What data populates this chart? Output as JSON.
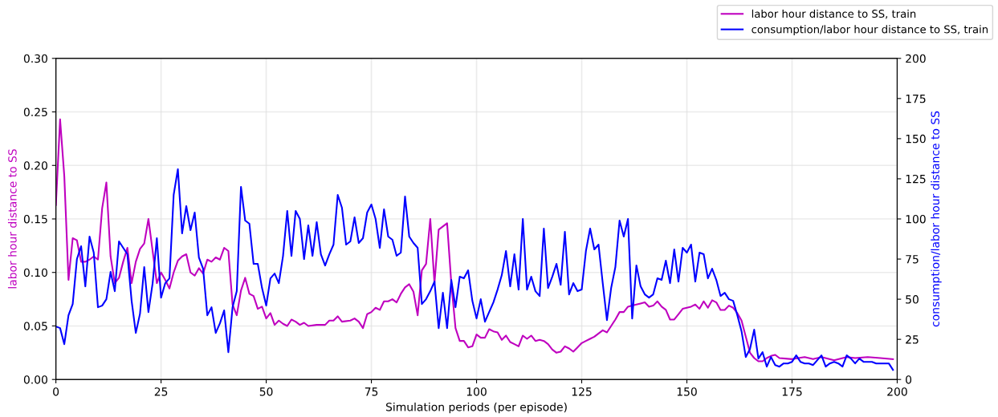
{
  "chart_data": {
    "type": "line",
    "xlabel": "Simulation periods (per episode)",
    "ylabel": "labor hour distance to SS",
    "y2label": "consumption/labor hour distance to SS",
    "xlim": [
      0,
      200
    ],
    "xticks": [
      0,
      25,
      50,
      75,
      100,
      125,
      150,
      175,
      200
    ],
    "ylim": [
      0,
      0.3
    ],
    "yticks": [
      {
        "value": 0,
        "label": "0.00"
      },
      {
        "value": 0.05,
        "label": "0.05"
      },
      {
        "value": 0.1,
        "label": "0.10"
      },
      {
        "value": 0.15,
        "label": "0.15"
      },
      {
        "value": 0.2,
        "label": "0.20"
      },
      {
        "value": 0.25,
        "label": "0.25"
      },
      {
        "value": 0.3,
        "label": "0.30"
      }
    ],
    "y2lim": [
      0,
      200
    ],
    "y2ticks": [
      0,
      25,
      50,
      75,
      100,
      125,
      150,
      175,
      200
    ],
    "grid": true,
    "legend": "top right",
    "line_style": "solid",
    "series": [
      {
        "name": "labor hour distance to SS, train",
        "color": "#bf00bf",
        "x": [
          0,
          1,
          2,
          3,
          4,
          5,
          6,
          7,
          8,
          9,
          10,
          11,
          12,
          13,
          14,
          15,
          16,
          17,
          18,
          19,
          20,
          21,
          22,
          23,
          24,
          25,
          26,
          27,
          28,
          29,
          30,
          31,
          32,
          33,
          34,
          35,
          36,
          37,
          38,
          39,
          40,
          41,
          42,
          43,
          44,
          45,
          46,
          47,
          48,
          49,
          50,
          51,
          52,
          53,
          54,
          55,
          56,
          57,
          58,
          59,
          60,
          62,
          64,
          65,
          66,
          67,
          68,
          70,
          71,
          72,
          73,
          74,
          75,
          76,
          77,
          78,
          79,
          80,
          81,
          82,
          83,
          84,
          85,
          86,
          87,
          88,
          89,
          90,
          91,
          92,
          93,
          94,
          95,
          96,
          97,
          98,
          99,
          100,
          101,
          102,
          103,
          104,
          105,
          106,
          107,
          108,
          109,
          110,
          111,
          112,
          113,
          114,
          115,
          116,
          117,
          118,
          119,
          120,
          121,
          122,
          123,
          124,
          125,
          126,
          127,
          128,
          129,
          130,
          131,
          132,
          133,
          134,
          135,
          136,
          137,
          138,
          139,
          140,
          141,
          142,
          143,
          144,
          145,
          146,
          147,
          148,
          149,
          150,
          151,
          152,
          153,
          154,
          155,
          156,
          157,
          158,
          159,
          160,
          161,
          162,
          163,
          164,
          165,
          166,
          167,
          168,
          169,
          170,
          171,
          172,
          175,
          178,
          180,
          182,
          185,
          188,
          190,
          193,
          196,
          199
        ],
        "values": [
          0.163,
          0.243,
          0.19,
          0.093,
          0.132,
          0.13,
          0.11,
          0.11,
          0.112,
          0.115,
          0.112,
          0.16,
          0.184,
          0.115,
          0.09,
          0.095,
          0.11,
          0.123,
          0.09,
          0.11,
          0.122,
          0.127,
          0.15,
          0.12,
          0.09,
          0.1,
          0.093,
          0.085,
          0.1,
          0.111,
          0.115,
          0.117,
          0.1,
          0.097,
          0.104,
          0.099,
          0.112,
          0.11,
          0.114,
          0.112,
          0.123,
          0.12,
          0.07,
          0.06,
          0.083,
          0.095,
          0.08,
          0.078,
          0.066,
          0.068,
          0.057,
          0.062,
          0.051,
          0.055,
          0.052,
          0.05,
          0.056,
          0.054,
          0.051,
          0.053,
          0.05,
          0.051,
          0.051,
          0.055,
          0.055,
          0.059,
          0.054,
          0.055,
          0.057,
          0.054,
          0.048,
          0.061,
          0.063,
          0.067,
          0.065,
          0.073,
          0.073,
          0.075,
          0.072,
          0.08,
          0.086,
          0.089,
          0.082,
          0.06,
          0.102,
          0.108,
          0.15,
          0.09,
          0.14,
          0.143,
          0.146,
          0.09,
          0.048,
          0.036,
          0.036,
          0.03,
          0.031,
          0.042,
          0.039,
          0.039,
          0.047,
          0.045,
          0.044,
          0.037,
          0.041,
          0.035,
          0.033,
          0.031,
          0.041,
          0.038,
          0.041,
          0.036,
          0.037,
          0.036,
          0.033,
          0.028,
          0.025,
          0.026,
          0.031,
          0.029,
          0.026,
          0.03,
          0.034,
          0.036,
          0.038,
          0.04,
          0.043,
          0.046,
          0.044,
          0.05,
          0.056,
          0.063,
          0.063,
          0.068,
          0.069,
          0.07,
          0.071,
          0.072,
          0.068,
          0.069,
          0.073,
          0.068,
          0.065,
          0.056,
          0.056,
          0.061,
          0.066,
          0.067,
          0.068,
          0.07,
          0.066,
          0.073,
          0.067,
          0.074,
          0.072,
          0.065,
          0.065,
          0.069,
          0.067,
          0.062,
          0.055,
          0.04,
          0.025,
          0.02,
          0.017,
          0.017,
          0.02,
          0.022,
          0.023,
          0.02,
          0.019,
          0.021,
          0.019,
          0.021,
          0.018,
          0.021,
          0.02,
          0.021,
          0.02,
          0.019
        ]
      },
      {
        "name": "consumption/labor hour distance to SS, train",
        "color": "#0000ff",
        "axis": "y2",
        "x": [
          0,
          1,
          2,
          3,
          4,
          5,
          6,
          7,
          8,
          9,
          10,
          11,
          12,
          13,
          14,
          15,
          16,
          17,
          18,
          19,
          20,
          21,
          22,
          23,
          24,
          25,
          26,
          27,
          28,
          29,
          30,
          31,
          32,
          33,
          34,
          35,
          36,
          37,
          38,
          39,
          40,
          41,
          42,
          43,
          44,
          45,
          46,
          47,
          48,
          49,
          50,
          51,
          52,
          53,
          54,
          55,
          56,
          57,
          58,
          59,
          60,
          61,
          62,
          63,
          64,
          65,
          66,
          67,
          68,
          69,
          70,
          71,
          72,
          73,
          74,
          75,
          76,
          77,
          78,
          79,
          80,
          81,
          82,
          83,
          84,
          85,
          86,
          87,
          88,
          89,
          90,
          91,
          92,
          93,
          94,
          95,
          96,
          97,
          98,
          99,
          100,
          101,
          102,
          103,
          104,
          105,
          106,
          107,
          108,
          109,
          110,
          111,
          112,
          113,
          114,
          115,
          116,
          117,
          118,
          119,
          120,
          121,
          122,
          123,
          124,
          125,
          126,
          127,
          128,
          129,
          130,
          131,
          132,
          133,
          134,
          135,
          136,
          137,
          138,
          139,
          140,
          141,
          142,
          143,
          144,
          145,
          146,
          147,
          148,
          149,
          150,
          151,
          152,
          153,
          154,
          155,
          156,
          157,
          158,
          159,
          160,
          161,
          162,
          163,
          164,
          165,
          166,
          167,
          168,
          169,
          170,
          171,
          172,
          173,
          174,
          175,
          176,
          177,
          178,
          179,
          180,
          181,
          182,
          183,
          184,
          185,
          186,
          187,
          188,
          189,
          190,
          191,
          192,
          193,
          194,
          195,
          196,
          197,
          198,
          199
        ],
        "values": [
          33,
          32,
          22,
          40,
          47,
          75,
          83,
          58,
          89,
          79,
          45,
          46,
          50,
          67,
          55,
          86,
          82,
          78,
          49,
          29,
          41,
          70,
          42,
          60,
          88,
          51,
          60,
          63,
          115,
          131,
          91,
          108,
          93,
          104,
          76,
          69,
          40,
          45,
          29,
          35,
          43,
          17,
          45,
          55,
          120,
          99,
          97,
          72,
          72,
          57,
          46,
          63,
          66,
          60,
          77,
          105,
          77,
          105,
          100,
          75,
          96,
          77,
          98,
          78,
          71,
          78,
          84,
          115,
          107,
          84,
          86,
          101,
          85,
          88,
          104,
          109,
          100,
          82,
          106,
          89,
          87,
          77,
          79,
          114,
          89,
          85,
          82,
          47,
          50,
          55,
          61,
          32,
          54,
          32,
          62,
          45,
          64,
          63,
          68,
          49,
          38,
          50,
          36,
          42,
          48,
          56,
          65,
          80,
          58,
          78,
          56,
          100,
          56,
          64,
          55,
          52,
          94,
          57,
          64,
          72,
          59,
          92,
          53,
          60,
          55,
          56,
          80,
          94,
          81,
          84,
          60,
          37,
          57,
          70,
          99,
          89,
          100,
          38,
          71,
          58,
          53,
          51,
          53,
          63,
          62,
          74,
          60,
          81,
          61,
          82,
          79,
          84,
          61,
          79,
          78,
          63,
          69,
          62,
          52,
          54,
          50,
          49,
          40,
          30,
          14,
          19,
          31,
          13,
          17,
          8,
          14,
          9,
          8,
          10,
          10,
          11,
          15,
          11,
          10,
          10,
          9,
          12,
          15,
          8,
          10,
          11,
          10,
          8,
          15,
          13,
          10,
          13,
          11,
          11,
          11,
          10,
          10,
          10,
          10,
          6
        ]
      }
    ]
  }
}
